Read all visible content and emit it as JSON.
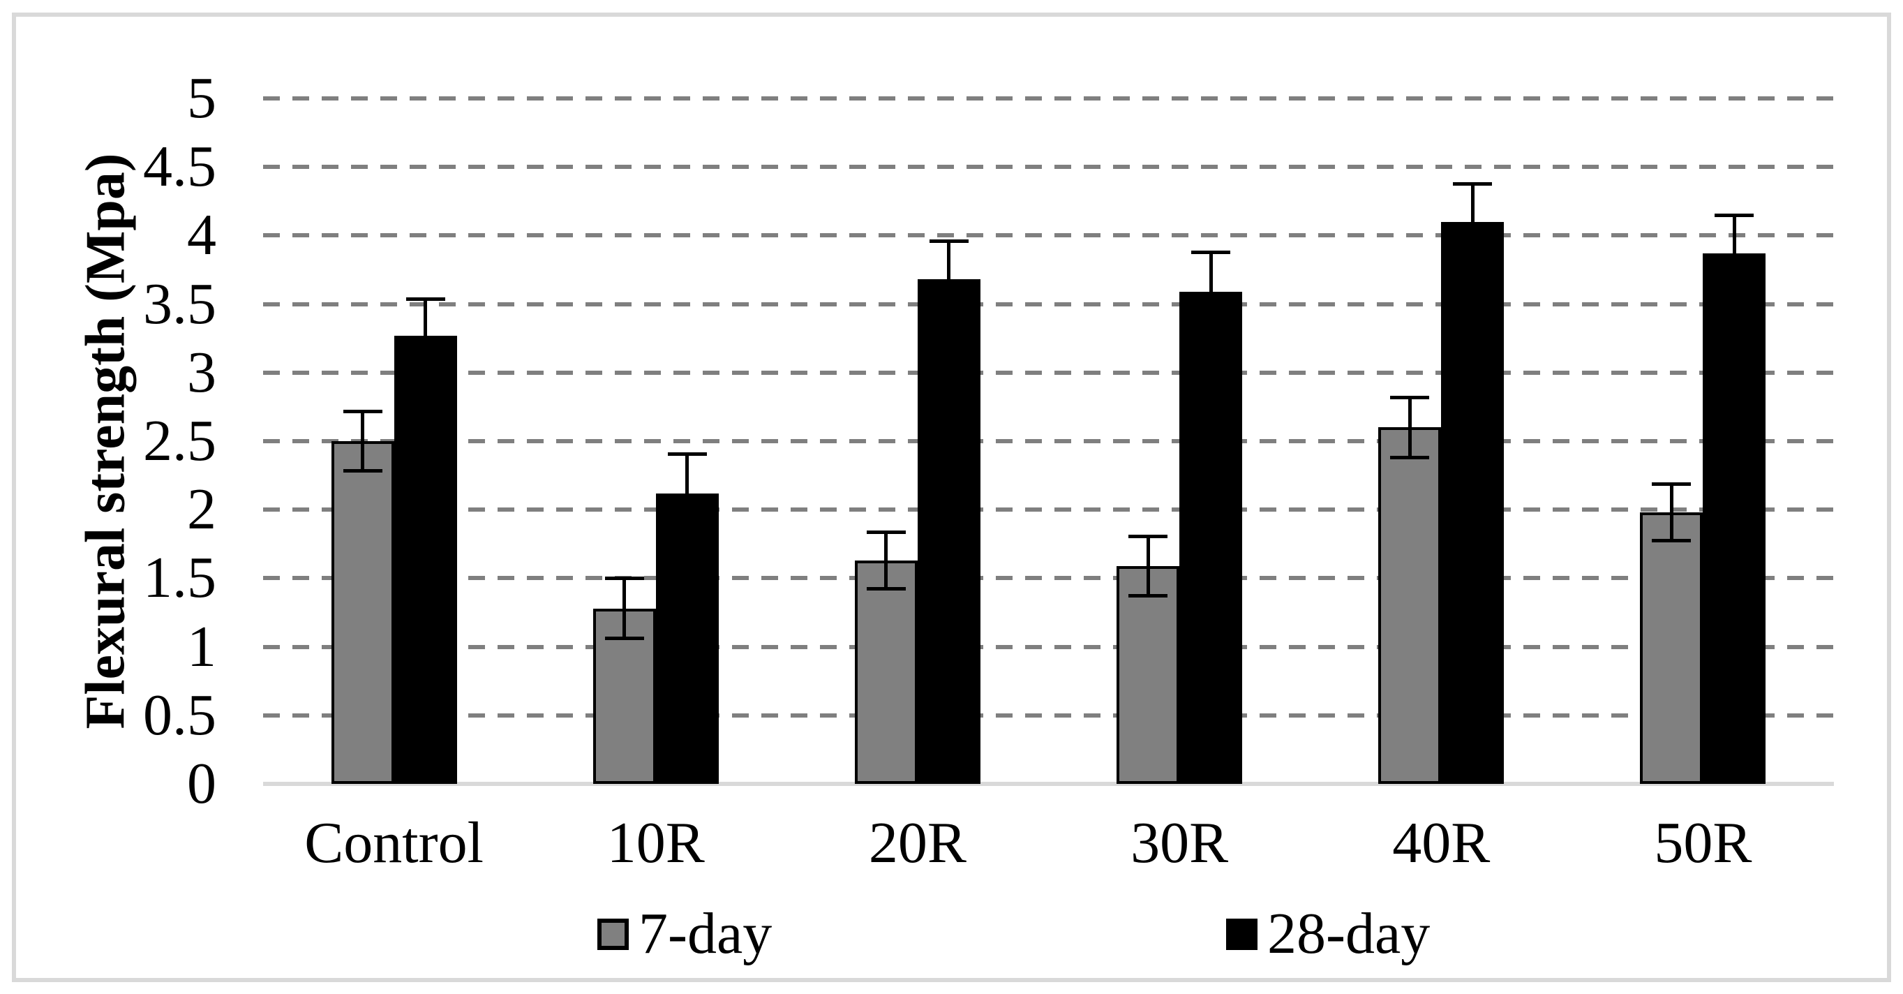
{
  "chart_data": {
    "type": "bar",
    "title": "",
    "xlabel": "",
    "ylabel": "Flexural strength (Mpa)",
    "categories": [
      "Control",
      "10R",
      "20R",
      "30R",
      "40R",
      "50R"
    ],
    "series": [
      {
        "name": "7-day",
        "color": "#808080",
        "values": [
          2.5,
          1.28,
          1.63,
          1.59,
          2.6,
          1.98
        ],
        "errors": [
          0.22,
          0.22,
          0.21,
          0.22,
          0.22,
          0.21
        ]
      },
      {
        "name": "28-day",
        "color": "#000000",
        "values": [
          3.27,
          2.12,
          3.68,
          3.59,
          4.1,
          3.87
        ],
        "errors": [
          0.27,
          0.29,
          0.28,
          0.29,
          0.28,
          0.28
        ]
      }
    ],
    "ylim": [
      0,
      5
    ],
    "ytick_step": 0.5,
    "yticks": [
      "0",
      "0.5",
      "1",
      "1.5",
      "2",
      "2.5",
      "3",
      "3.5",
      "4",
      "4.5",
      "5"
    ],
    "grid": "horizontal-dashed",
    "legend_position": "bottom",
    "colors": {
      "gridline": "#7f7f7f",
      "axis_and_frame": "#d9d9d9",
      "text": "#000000",
      "background": "#ffffff"
    }
  }
}
